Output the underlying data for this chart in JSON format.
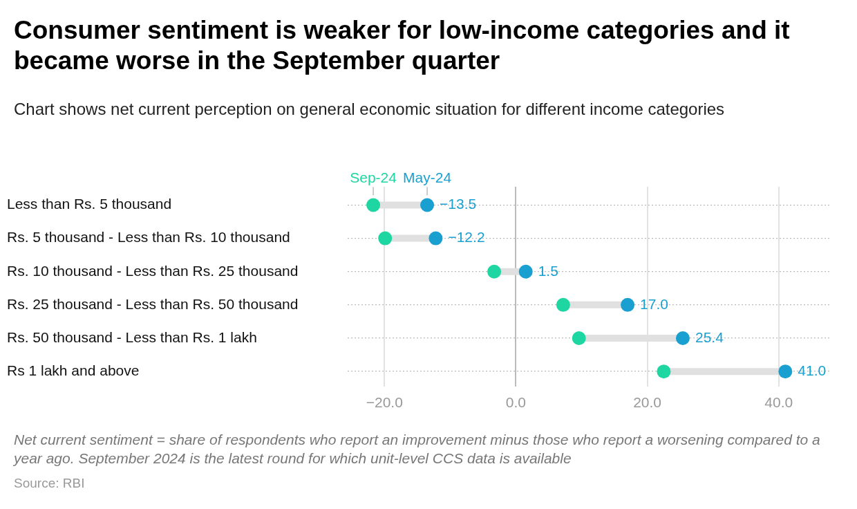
{
  "chart_data": {
    "type": "scatter",
    "orientation": "horizontal",
    "title": "Consumer sentiment is weaker for low-income categories and it became worse in the September quarter",
    "subtitle": "Chart shows net current perception on general economic situation for different income categories",
    "categories": [
      "Less than Rs. 5 thousand",
      "Rs. 5 thousand - Less than Rs. 10 thousand",
      "Rs. 10 thousand - Less than Rs. 25 thousand",
      "Rs. 25 thousand - Less than Rs. 50 thousand",
      "Rs. 50 thousand - Less than Rs. 1 lakh",
      "Rs 1 lakh and above"
    ],
    "series": [
      {
        "name": "Sep-24",
        "color": "#1dd6a2",
        "values": [
          -21.7,
          -19.9,
          -3.3,
          7.2,
          9.6,
          22.5
        ]
      },
      {
        "name": "May-24",
        "color": "#1a9fd1",
        "values": [
          -13.5,
          -12.2,
          1.5,
          17.0,
          25.4,
          41.0
        ],
        "value_labels": [
          "−13.5",
          "−12.2",
          "1.5",
          "17.0",
          "25.4",
          "41.0"
        ]
      }
    ],
    "xlim": [
      -25.6,
      47.7
    ],
    "xticks": [
      {
        "value": -20,
        "label": "−20.0"
      },
      {
        "value": 0,
        "label": "0.0"
      },
      {
        "value": 20,
        "label": "20.0"
      },
      {
        "value": 40,
        "label": "40.0"
      }
    ],
    "grid": true,
    "marker": "circle",
    "annotations": [
      "Net current sentiment = share of respondents who report an improvement minus those who report a worsening compared to a year ago. September 2024 is the latest round for which unit-level CCS data is available",
      "Source: RBI"
    ]
  }
}
